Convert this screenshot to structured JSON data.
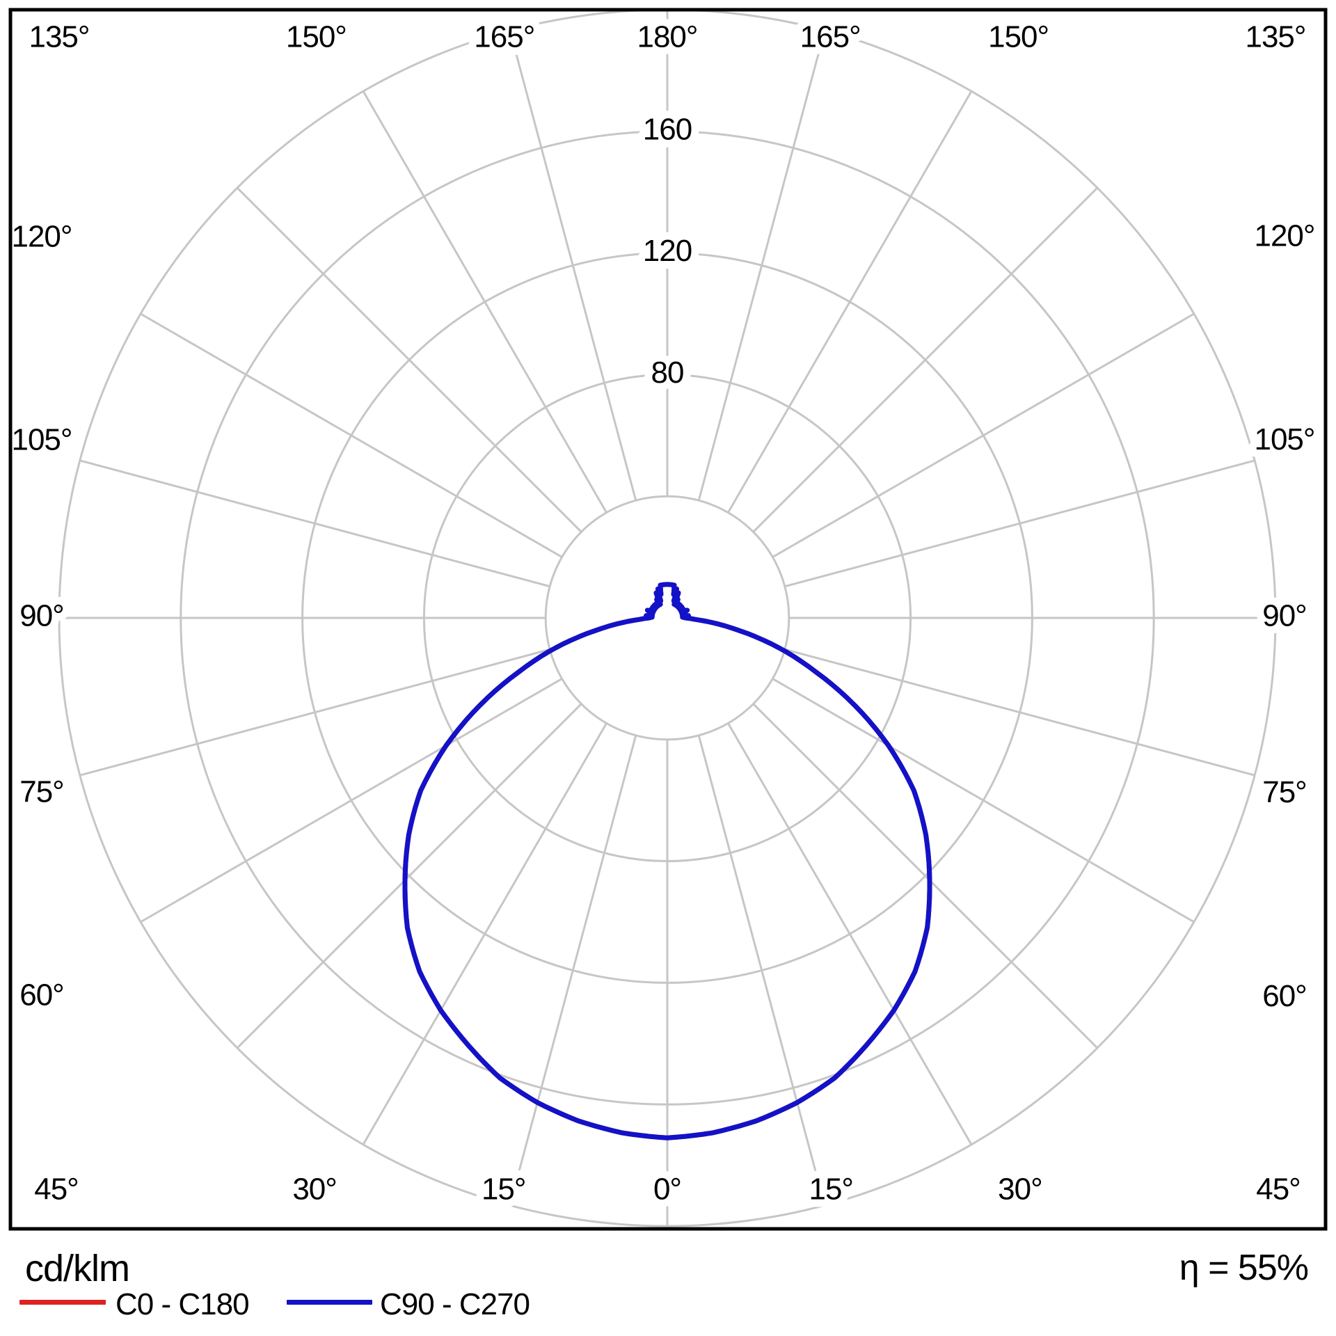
{
  "footer": {
    "units_label": "cd/klm",
    "efficiency_label": "η = 55%"
  },
  "chart_data": {
    "type": "polar-photometric",
    "units": "cd/klm",
    "efficiency": "η = 55%",
    "rmax": 200,
    "ring_values": [
      40,
      80,
      120,
      160,
      200
    ],
    "ring_label_values": [
      80,
      120,
      160
    ],
    "angle_label_step_deg": 15,
    "angle_labels": [
      "0°",
      "15°",
      "30°",
      "45°",
      "60°",
      "75°",
      "90°",
      "105°",
      "120°",
      "135°",
      "150°",
      "165°",
      "180°"
    ],
    "grid_color": "#c6c6c6",
    "background": "#ffffff",
    "border_color": "#000000",
    "legend_position": "bottom-left",
    "series": [
      {
        "name": "C0 - C180",
        "color": "#dd2222",
        "points_deg_value": [
          [
            0,
            171
          ],
          [
            5,
            170
          ],
          [
            10,
            168
          ],
          [
            15,
            165
          ],
          [
            20,
            161
          ],
          [
            25,
            155
          ],
          [
            30,
            149
          ],
          [
            35,
            142
          ],
          [
            40,
            133
          ],
          [
            45,
            122
          ],
          [
            50,
            111
          ],
          [
            55,
            99
          ],
          [
            60,
            84
          ],
          [
            65,
            68
          ],
          [
            70,
            52
          ],
          [
            75,
            38
          ],
          [
            80,
            24
          ],
          [
            84,
            15
          ],
          [
            87,
            9
          ],
          [
            90,
            6
          ],
          [
            93,
            5
          ],
          [
            96,
            7
          ],
          [
            99,
            5
          ],
          [
            103,
            6
          ],
          [
            107,
            5
          ],
          [
            111,
            7
          ],
          [
            115,
            5
          ],
          [
            119,
            6
          ],
          [
            123,
            5
          ],
          [
            127,
            6
          ],
          [
            131,
            5
          ],
          [
            135,
            6
          ],
          [
            139,
            5
          ],
          [
            143,
            6
          ],
          [
            147,
            5
          ],
          [
            150,
            7
          ],
          [
            153,
            5
          ],
          [
            156,
            9
          ],
          [
            159,
            6
          ],
          [
            162,
            10
          ],
          [
            165,
            8
          ],
          [
            168,
            11
          ],
          [
            172,
            11
          ],
          [
            176,
            11
          ],
          [
            180,
            11
          ]
        ]
      },
      {
        "name": "C90 - C270",
        "color": "#1212c8",
        "points_deg_value": [
          [
            0,
            171
          ],
          [
            5,
            170
          ],
          [
            10,
            168
          ],
          [
            15,
            165
          ],
          [
            20,
            161
          ],
          [
            25,
            155
          ],
          [
            30,
            149
          ],
          [
            35,
            142
          ],
          [
            40,
            133
          ],
          [
            45,
            122
          ],
          [
            50,
            111
          ],
          [
            55,
            99
          ],
          [
            60,
            84
          ],
          [
            65,
            68
          ],
          [
            70,
            52
          ],
          [
            75,
            38
          ],
          [
            80,
            24
          ],
          [
            84,
            15
          ],
          [
            87,
            9
          ],
          [
            90,
            6
          ],
          [
            93,
            5
          ],
          [
            96,
            7
          ],
          [
            99,
            5
          ],
          [
            103,
            6
          ],
          [
            107,
            5
          ],
          [
            111,
            7
          ],
          [
            115,
            5
          ],
          [
            119,
            6
          ],
          [
            123,
            5
          ],
          [
            127,
            6
          ],
          [
            131,
            5
          ],
          [
            135,
            6
          ],
          [
            139,
            5
          ],
          [
            143,
            6
          ],
          [
            147,
            5
          ],
          [
            150,
            7
          ],
          [
            153,
            5
          ],
          [
            156,
            9
          ],
          [
            159,
            6
          ],
          [
            162,
            10
          ],
          [
            165,
            8
          ],
          [
            168,
            11
          ],
          [
            172,
            11
          ],
          [
            176,
            11
          ],
          [
            180,
            11
          ]
        ]
      }
    ]
  }
}
